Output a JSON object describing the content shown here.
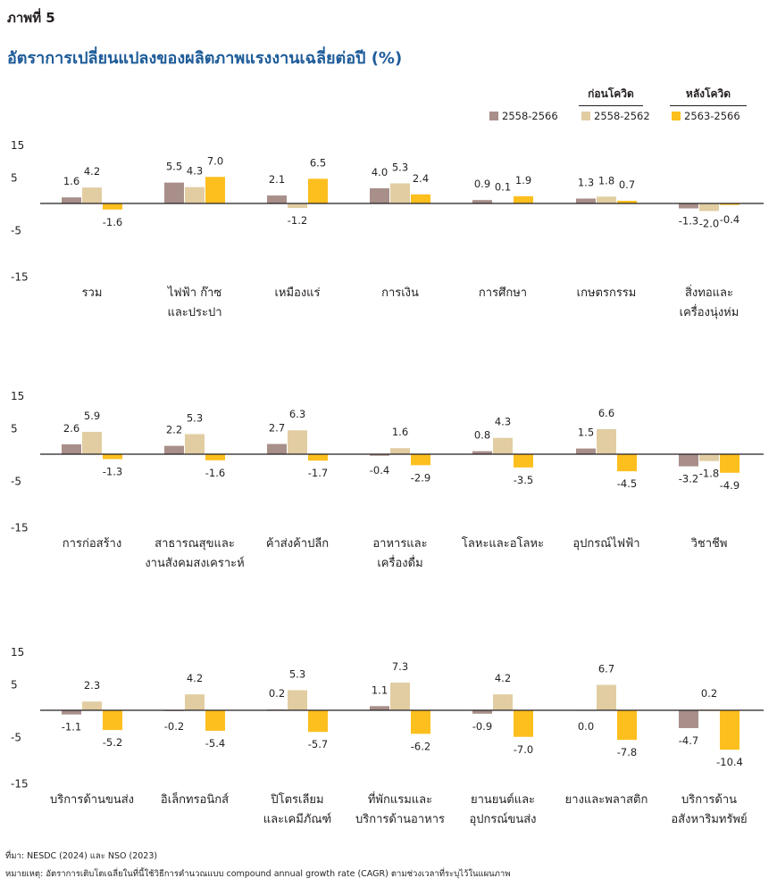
{
  "figure_label": "ภาพที่ 5",
  "title": "อัตราการเปลี่ยนแปลงของผลิตภาพแรงงานเฉลี่ยต่อปี (%)",
  "legend_groups": [
    "ก่อนโควิด",
    "หลังโควิด"
  ],
  "source": "ที่มา: NESDC (2024) และ NSO (2023)",
  "note": "หมายเหตุ: อัตราการเติบโตเฉลี่ยในที่นี้ใช้วิธีการคำนวณแบบ compound annual growth rate (CAGR) ตามช่วงเวลาที่ระบุไว้ในแผนภาพ",
  "colors": {
    "s1": "#a88f8a",
    "s2": "#e2cda2",
    "s3": "#fdbf1e",
    "axis": "#231f20"
  },
  "chart_data": [
    {
      "type": "bar",
      "yticks": [
        "15",
        "5",
        "-5",
        "-15"
      ],
      "ylim": [
        -15,
        15
      ],
      "series": [
        {
          "name": "2558-2566",
          "values": [
            1.6,
            5.5,
            2.1,
            4.0,
            0.9,
            1.3,
            -1.3
          ]
        },
        {
          "name": "2558-2562",
          "values": [
            4.2,
            4.3,
            -1.2,
            5.3,
            0.1,
            1.8,
            -2.0
          ]
        },
        {
          "name": "2563-2566",
          "values": [
            -1.6,
            7.0,
            6.5,
            2.4,
            1.9,
            0.7,
            -0.4
          ]
        }
      ],
      "labels": [
        [
          "1.6",
          "4.2",
          "-1.6"
        ],
        [
          "5.5",
          "4.3",
          "7.0"
        ],
        [
          "2.1",
          "-1.2",
          "6.5"
        ],
        [
          "4.0",
          "5.3",
          "2.4"
        ],
        [
          "0.9",
          "0.1",
          "1.9"
        ],
        [
          "1.3",
          "1.8",
          "0.7"
        ],
        [
          "-1.3",
          "-2.0",
          "-0.4"
        ]
      ],
      "categories": [
        [
          "รวม"
        ],
        [
          "ไฟฟ้า ก๊าซ",
          "และประปา"
        ],
        [
          "เหมืองแร่"
        ],
        [
          "การเงิน"
        ],
        [
          "การศึกษา"
        ],
        [
          "เกษตรกรรม"
        ],
        [
          "สิ่งทอและ",
          "เครื่องนุ่งห่ม"
        ]
      ]
    },
    {
      "type": "bar",
      "yticks": [
        "15",
        "5",
        "-5",
        "-15"
      ],
      "ylim": [
        -15,
        15
      ],
      "series": [
        {
          "name": "2558-2566",
          "values": [
            2.6,
            2.2,
            2.7,
            -0.4,
            0.8,
            1.5,
            -3.2
          ]
        },
        {
          "name": "2558-2562",
          "values": [
            5.9,
            5.3,
            6.3,
            1.6,
            4.3,
            6.6,
            -1.8
          ]
        },
        {
          "name": "2563-2566",
          "values": [
            -1.3,
            -1.6,
            -1.7,
            -2.9,
            -3.5,
            -4.5,
            -4.9
          ]
        }
      ],
      "labels": [
        [
          "2.6",
          "5.9",
          "-1.3"
        ],
        [
          "2.2",
          "5.3",
          "-1.6"
        ],
        [
          "2.7",
          "6.3",
          "-1.7"
        ],
        [
          "-0.4",
          "1.6",
          "-2.9"
        ],
        [
          "0.8",
          "4.3",
          "-3.5"
        ],
        [
          "1.5",
          "6.6",
          "-4.5"
        ],
        [
          "-3.2",
          "-1.8",
          "-4.9"
        ]
      ],
      "categories": [
        [
          "การก่อสร้าง"
        ],
        [
          "สาธารณสุขและ",
          "งานสังคมสงเคราะห์"
        ],
        [
          "ค้าส่งค้าปลีก"
        ],
        [
          "อาหารและ",
          "เครื่องดื่ม"
        ],
        [
          "โลหะและอโลหะ"
        ],
        [
          "อุปกรณ์ไฟฟ้า"
        ],
        [
          "วิชาชีพ"
        ]
      ]
    },
    {
      "type": "bar",
      "yticks": [
        "15",
        "5",
        "-5",
        "-15"
      ],
      "ylim": [
        -15,
        15
      ],
      "series": [
        {
          "name": "2558-2566",
          "values": [
            -1.1,
            -0.2,
            0.2,
            1.1,
            -0.9,
            0.0,
            -4.7
          ]
        },
        {
          "name": "2558-2562",
          "values": [
            2.3,
            4.2,
            5.3,
            7.3,
            4.2,
            6.7,
            0.2
          ]
        },
        {
          "name": "2563-2566",
          "values": [
            -5.2,
            -5.4,
            -5.7,
            -6.2,
            -7.0,
            -7.8,
            -10.4
          ]
        }
      ],
      "labels": [
        [
          "-1.1",
          "2.3",
          "-5.2"
        ],
        [
          "-0.2",
          "4.2",
          "-5.4"
        ],
        [
          "0.2",
          "5.3",
          "-5.7"
        ],
        [
          "1.1",
          "7.3",
          "-6.2"
        ],
        [
          "-0.9",
          "4.2",
          "-7.0"
        ],
        [
          "0.0",
          "6.7",
          "-7.8"
        ],
        [
          "-4.7",
          "0.2",
          "-10.4"
        ]
      ],
      "categories": [
        [
          "บริการด้านขนส่ง"
        ],
        [
          "อิเล็กทรอนิกส์"
        ],
        [
          "ปิโตรเลียม",
          "และเคมีภัณฑ์"
        ],
        [
          "ที่พักแรมและ",
          "บริการด้านอาหาร"
        ],
        [
          "ยานยนต์และ",
          "อุปกรณ์ขนส่ง"
        ],
        [
          "ยางและพลาสติก"
        ],
        [
          "บริการด้าน",
          "อสังหาริมทรัพย์"
        ]
      ]
    }
  ]
}
